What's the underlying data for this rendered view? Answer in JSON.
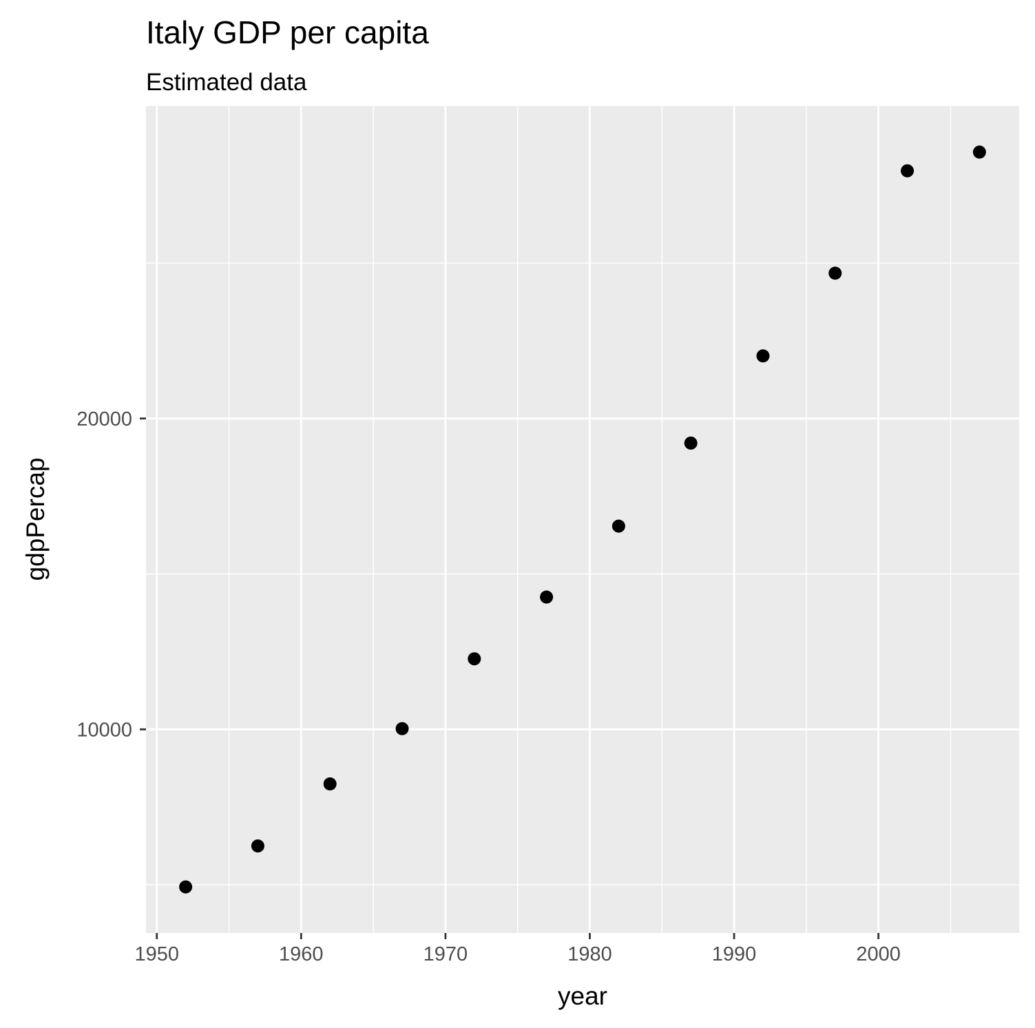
{
  "chart_data": {
    "type": "scatter",
    "title": "Italy GDP per capita",
    "subtitle": "Estimated data",
    "xlabel": "year",
    "ylabel": "gdpPercap",
    "x": [
      1952,
      1957,
      1962,
      1967,
      1972,
      1977,
      1982,
      1987,
      1992,
      1997,
      2002,
      2007
    ],
    "y": [
      4931,
      6249,
      8244,
      10022,
      12269,
      14256,
      16537,
      19208,
      22014,
      24675,
      27968,
      28570
    ],
    "xlim": [
      1949.25,
      2009.75
    ],
    "ylim": [
      3449,
      30052
    ],
    "x_ticks": [
      1950,
      1960,
      1970,
      1980,
      1990,
      2000
    ],
    "x_tick_labels": [
      "1950",
      "1960",
      "1970",
      "1980",
      "1990",
      "2000"
    ],
    "y_ticks": [
      10000,
      20000
    ],
    "y_tick_labels": [
      "10000",
      "20000"
    ],
    "x_minor_ticks": [
      1955,
      1965,
      1975,
      1985,
      1995,
      2005
    ],
    "y_minor_ticks": [
      5000,
      15000,
      25000
    ],
    "grid": true,
    "legend": "none",
    "colors": {
      "panel_background": "#ebebeb",
      "grid_major": "#ffffff",
      "grid_minor": "#ffffff",
      "point": "#000000",
      "tick_label": "#4d4d4d",
      "tick_mark": "#333333"
    }
  }
}
